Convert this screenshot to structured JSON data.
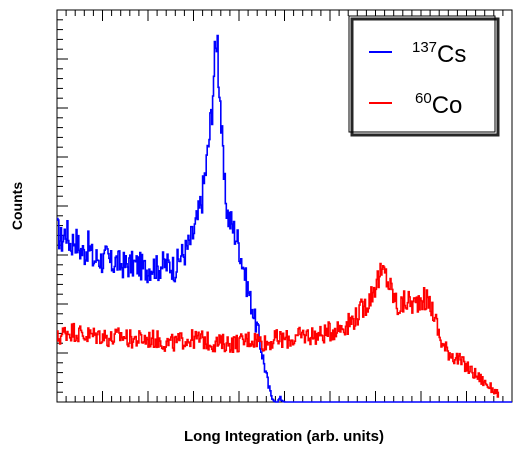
{
  "chart_data": {
    "type": "line",
    "title": "",
    "xlabel": "Long Integration (arb. units)",
    "ylabel": "Counts",
    "xlim": [
      0,
      1000
    ],
    "ylim": [
      0,
      100
    ],
    "x_tick_labels": "none",
    "y_tick_labels": "none",
    "grid": false,
    "legend_position": "top-right",
    "series": [
      {
        "name": "137Cs",
        "legend_mass_number": "137",
        "legend_symbol": "Cs",
        "color": "#0000ff",
        "points": [
          [
            0,
            44
          ],
          [
            10,
            41
          ],
          [
            20,
            44
          ],
          [
            30,
            40
          ],
          [
            40,
            42
          ],
          [
            50,
            39
          ],
          [
            60,
            38
          ],
          [
            70,
            40
          ],
          [
            80,
            36
          ],
          [
            90,
            37
          ],
          [
            100,
            36
          ],
          [
            110,
            37
          ],
          [
            120,
            35
          ],
          [
            130,
            36
          ],
          [
            140,
            35
          ],
          [
            150,
            35
          ],
          [
            160,
            35
          ],
          [
            170,
            35
          ],
          [
            180,
            35
          ],
          [
            190,
            34
          ],
          [
            200,
            34
          ],
          [
            210,
            35
          ],
          [
            220,
            34
          ],
          [
            230,
            35
          ],
          [
            240,
            35
          ],
          [
            250,
            35
          ],
          [
            260,
            34
          ],
          [
            270,
            37
          ],
          [
            280,
            38
          ],
          [
            290,
            40
          ],
          [
            300,
            43
          ],
          [
            310,
            47
          ],
          [
            320,
            53
          ],
          [
            330,
            62
          ],
          [
            340,
            74
          ],
          [
            346,
            86
          ],
          [
            350,
            90
          ],
          [
            352,
            98
          ],
          [
            354,
            86
          ],
          [
            358,
            80
          ],
          [
            362,
            68
          ],
          [
            368,
            55
          ],
          [
            375,
            48
          ],
          [
            385,
            45
          ],
          [
            395,
            42
          ],
          [
            400,
            40
          ],
          [
            405,
            37
          ],
          [
            410,
            35
          ],
          [
            415,
            31
          ],
          [
            420,
            29
          ],
          [
            425,
            26
          ],
          [
            430,
            24
          ],
          [
            435,
            21
          ],
          [
            440,
            19
          ],
          [
            445,
            16
          ],
          [
            450,
            13
          ],
          [
            455,
            10
          ],
          [
            460,
            7
          ],
          [
            465,
            4
          ],
          [
            470,
            2
          ],
          [
            475,
            1
          ],
          [
            480,
            0
          ],
          [
            485,
            0
          ],
          [
            490,
            1
          ],
          [
            495,
            0.5
          ],
          [
            500,
            0
          ],
          [
            1000,
            0
          ]
        ]
      },
      {
        "name": "60Co",
        "legend_mass_number": "60",
        "legend_symbol": "Co",
        "color": "#ff0000",
        "points": [
          [
            0,
            16
          ],
          [
            20,
            18
          ],
          [
            40,
            18
          ],
          [
            60,
            17
          ],
          [
            80,
            17
          ],
          [
            100,
            17
          ],
          [
            120,
            16
          ],
          [
            140,
            17
          ],
          [
            160,
            16
          ],
          [
            180,
            16
          ],
          [
            200,
            16
          ],
          [
            220,
            16
          ],
          [
            240,
            15
          ],
          [
            260,
            15
          ],
          [
            280,
            16
          ],
          [
            300,
            16
          ],
          [
            320,
            16
          ],
          [
            340,
            15
          ],
          [
            360,
            15
          ],
          [
            380,
            15
          ],
          [
            400,
            15
          ],
          [
            420,
            16
          ],
          [
            440,
            16
          ],
          [
            460,
            15
          ],
          [
            480,
            16
          ],
          [
            500,
            16
          ],
          [
            520,
            16
          ],
          [
            540,
            17
          ],
          [
            560,
            17
          ],
          [
            580,
            17
          ],
          [
            600,
            18
          ],
          [
            620,
            19
          ],
          [
            640,
            20
          ],
          [
            660,
            22
          ],
          [
            680,
            25
          ],
          [
            690,
            27
          ],
          [
            700,
            30
          ],
          [
            710,
            32
          ],
          [
            720,
            33
          ],
          [
            730,
            30
          ],
          [
            740,
            27
          ],
          [
            750,
            24
          ],
          [
            760,
            25
          ],
          [
            770,
            26
          ],
          [
            780,
            25
          ],
          [
            790,
            25
          ],
          [
            800,
            27
          ],
          [
            810,
            26
          ],
          [
            820,
            25
          ],
          [
            830,
            22
          ],
          [
            840,
            17
          ],
          [
            850,
            14
          ],
          [
            860,
            13
          ],
          [
            870,
            12
          ],
          [
            880,
            11
          ],
          [
            890,
            10
          ],
          [
            900,
            9
          ],
          [
            910,
            8
          ],
          [
            920,
            7
          ],
          [
            930,
            6
          ],
          [
            940,
            5
          ],
          [
            950,
            4
          ],
          [
            960,
            3
          ],
          [
            970,
            2
          ]
        ]
      }
    ]
  }
}
